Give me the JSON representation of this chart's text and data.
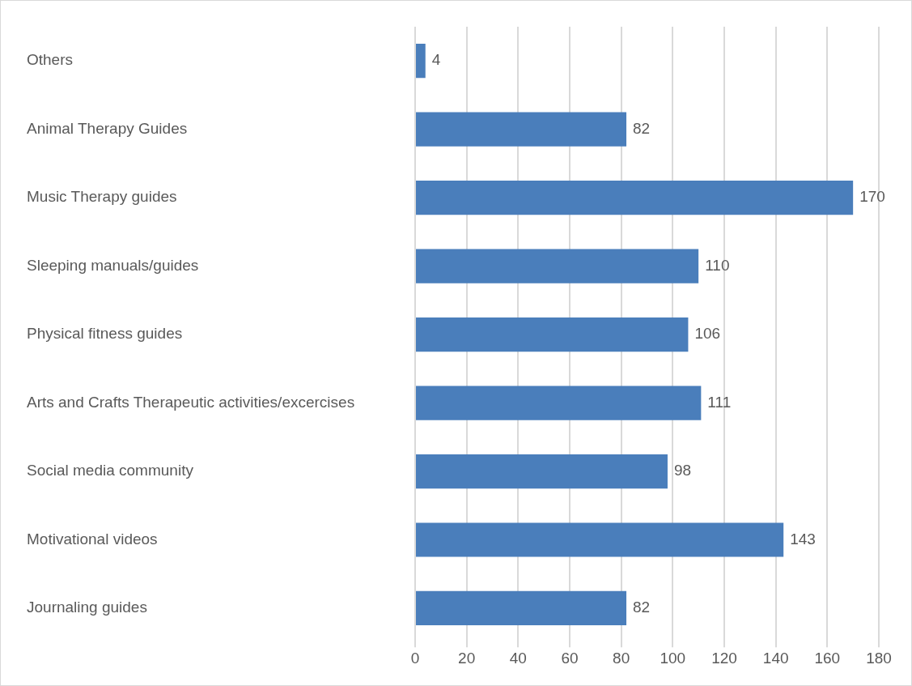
{
  "chart_data": {
    "type": "bar",
    "orientation": "horizontal",
    "categories": [
      "Others",
      "Animal Therapy Guides",
      "Music Therapy guides",
      "Sleeping manuals/guides",
      "Physical fitness guides",
      "Arts and Crafts Therapeutic activities/excercises",
      "Social media community",
      "Motivational videos",
      "Journaling guides"
    ],
    "values": [
      4,
      82,
      170,
      110,
      106,
      111,
      98,
      143,
      82
    ],
    "color": "#4a7ebb",
    "xlim": [
      0,
      180
    ],
    "xticks": [
      0,
      20,
      40,
      60,
      80,
      100,
      120,
      140,
      160,
      180
    ],
    "grid": "x",
    "data_labels": true,
    "legend": false
  }
}
